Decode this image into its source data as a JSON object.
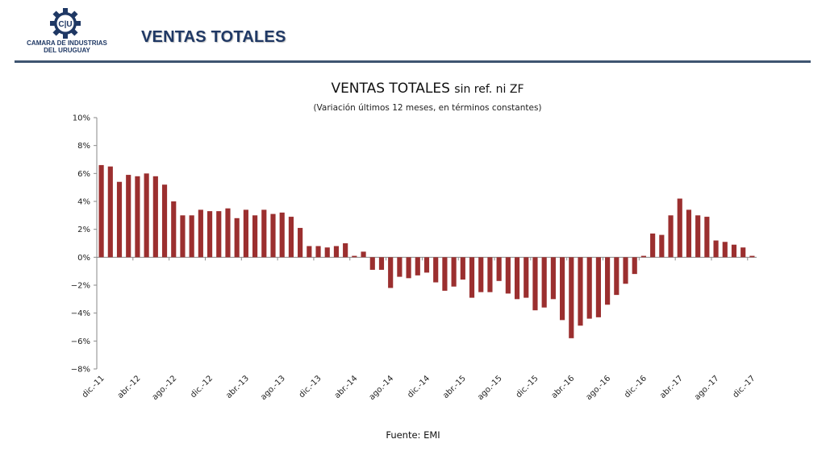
{
  "logo": {
    "text_line1": "CAMARA DE INDUSTRIAS",
    "text_line2": "DEL URUGUAY",
    "mark_text": "C|U"
  },
  "header": {
    "title": "VENTAS TOTALES"
  },
  "colors": {
    "bar": "#9b2f2f",
    "header_rule": "#3e5470",
    "header_text": "#1f3864"
  },
  "chart_data": {
    "type": "bar",
    "title_main": "VENTAS TOTALES",
    "title_suffix": "sin ref. ni ZF",
    "subtitle": "(Variación últimos 12 meses, en términos constantes)",
    "ylim": [
      -8,
      10
    ],
    "yticks": [
      "10%",
      "8%",
      "6%",
      "4%",
      "2%",
      "0%",
      "−2%",
      "−4%",
      "−6%",
      "−8%"
    ],
    "ytick_values": [
      10,
      8,
      6,
      4,
      2,
      0,
      -2,
      -4,
      -6,
      -8
    ],
    "tick_labels": [
      "dic.-11",
      "abr.-12",
      "ago.-12",
      "dic.-12",
      "abr.-13",
      "ago.-13",
      "dic.-13",
      "abr.-14",
      "ago.-14",
      "dic.-14",
      "abr.-15",
      "ago.-15",
      "dic.-15",
      "abr.-16",
      "ago.-16",
      "dic.-16",
      "abr.-17",
      "ago.-17",
      "dic.-17"
    ],
    "tick_every": 4,
    "values": [
      6.6,
      6.5,
      5.4,
      5.9,
      5.8,
      6.0,
      5.8,
      5.2,
      4.0,
      3.0,
      3.0,
      3.4,
      3.3,
      3.3,
      3.5,
      2.8,
      3.4,
      3.0,
      3.4,
      3.1,
      3.2,
      2.9,
      2.1,
      0.8,
      0.8,
      0.7,
      0.8,
      1.0,
      0.1,
      0.4,
      -0.9,
      -0.9,
      -2.2,
      -1.4,
      -1.5,
      -1.3,
      -1.1,
      -1.8,
      -2.4,
      -2.1,
      -1.6,
      -2.9,
      -2.5,
      -2.5,
      -1.7,
      -2.6,
      -3.0,
      -2.9,
      -3.8,
      -3.6,
      -3.0,
      -4.5,
      -5.8,
      -4.9,
      -4.4,
      -4.3,
      -3.4,
      -2.7,
      -1.9,
      -1.2,
      0.1,
      1.7,
      1.6,
      3.0,
      4.2,
      3.4,
      3.0,
      2.9,
      1.2,
      1.1,
      0.9,
      0.7,
      0.1
    ],
    "grid": false,
    "legend": "none"
  },
  "footer": {
    "source": "Fuente: EMI"
  }
}
